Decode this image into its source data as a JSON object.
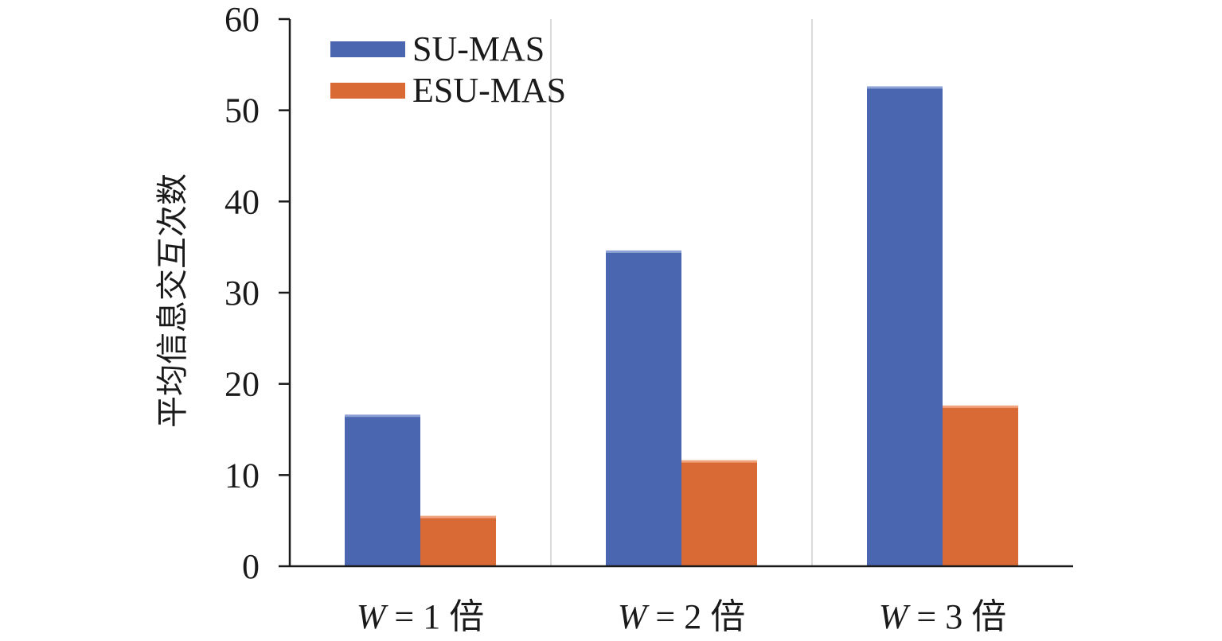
{
  "chart_data": {
    "type": "bar",
    "title": "",
    "xlabel": "",
    "ylabel": "平均信息交互次数",
    "ylim": [
      0,
      60
    ],
    "yticks": [
      0,
      10,
      20,
      30,
      40,
      50,
      60
    ],
    "categories": [
      "W = 1 倍",
      "W = 2 倍",
      "W = 3 倍"
    ],
    "category_parts": [
      {
        "var": "W",
        "eq": " = ",
        "num": "1",
        "unit": " 倍"
      },
      {
        "var": "W",
        "eq": " = ",
        "num": "2",
        "unit": " 倍"
      },
      {
        "var": "W",
        "eq": " = ",
        "num": "3",
        "unit": " 倍"
      }
    ],
    "series": [
      {
        "name": "SU-MAS",
        "color": "#4b66b0",
        "values": [
          16.5,
          34.5,
          52.5
        ]
      },
      {
        "name": "ESU-MAS",
        "color": "#d96a36",
        "values": [
          5.4,
          11.5,
          17.5
        ]
      }
    ],
    "grid": false,
    "category_separators": true,
    "legend_position": "top-left"
  }
}
